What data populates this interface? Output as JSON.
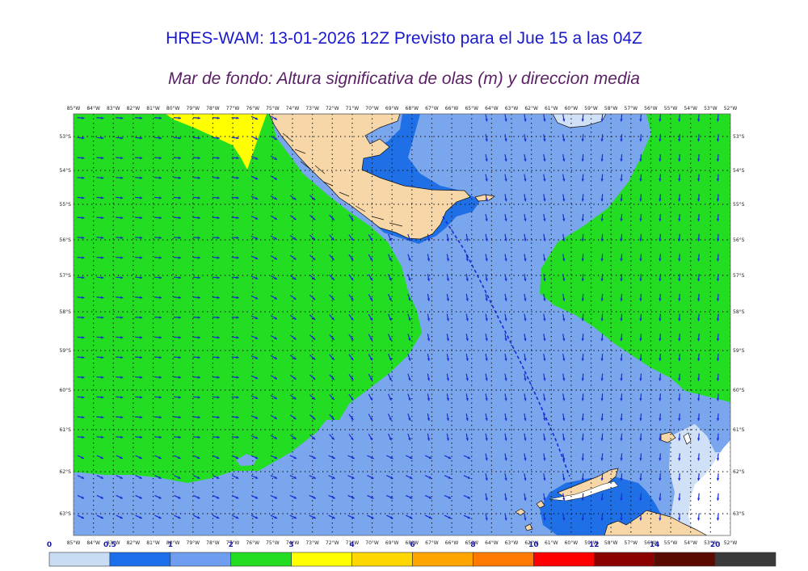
{
  "title": "HRES-WAM: 13-01-2026 12Z Previsto para el Jue 15 a las 04Z",
  "subtitle": "Mar de fondo: Altura significativa de olas (m) y direccion media",
  "map": {
    "lon_labels": [
      "85°W",
      "84°W",
      "83°W",
      "82°W",
      "81°W",
      "80°W",
      "79°W",
      "78°W",
      "77°W",
      "76°W",
      "75°W",
      "74°W",
      "73°W",
      "72°W",
      "71°W",
      "70°W",
      "69°W",
      "68°W",
      "67°W",
      "66°W",
      "65°W",
      "64°W",
      "63°W",
      "62°W",
      "61°W",
      "60°W",
      "59°W",
      "58°W",
      "57°W",
      "56°W",
      "55°W",
      "54°W",
      "53°W",
      "52°W"
    ],
    "lat_labels": [
      "53°S",
      "54°S",
      "55°S",
      "56°S",
      "57°S",
      "58°S",
      "59°S",
      "60°S",
      "61°S",
      "62°S",
      "63°S"
    ],
    "colors": {
      "land": "#f7d7a8",
      "ice": "#ffffff",
      "c0": "#cfe0f7",
      "c05": "#1f6fe6",
      "c1": "#7aa6ee",
      "c2": "#22dd22",
      "c3": "#ffff00",
      "arrow": "#1a2bd6",
      "route": "#1a2bd6"
    }
  },
  "colorbar": {
    "labels": [
      "0",
      "0.5",
      "1",
      "2",
      "3",
      "4",
      "6",
      "8",
      "10",
      "12",
      "14",
      "20"
    ],
    "colors": [
      "#c8dcf4",
      "#1c6eea",
      "#6f9ef0",
      "#22dd22",
      "#ffff00",
      "#ffd700",
      "#ffa500",
      "#ff7a00",
      "#ff0000",
      "#8b0000",
      "#5a0a00",
      "#3a3a3a"
    ]
  }
}
